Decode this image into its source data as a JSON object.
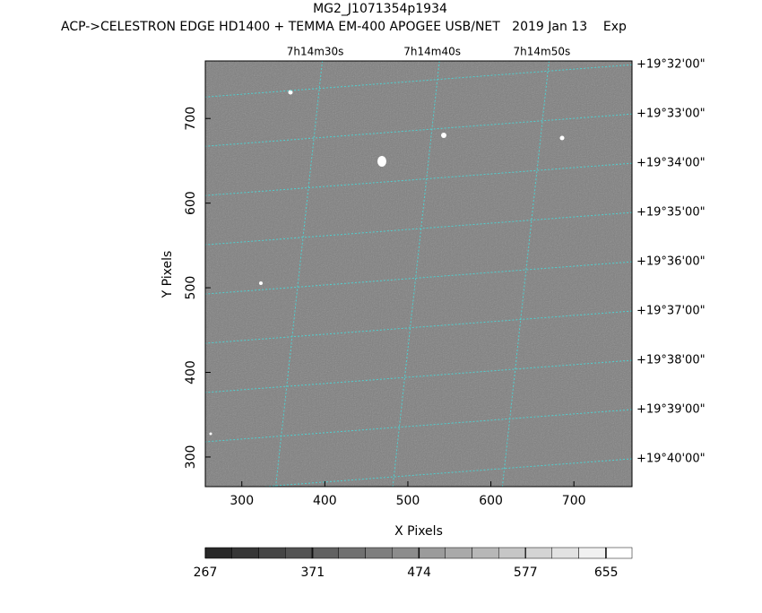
{
  "chart_data": {
    "type": "image",
    "title": "MG2_J1071354p1934",
    "subtitle": "ACP->CELESTRON EDGE HD1400 + TEMMA EM-400 APOGEE USB/NET   2019 Jan 13    Exp",
    "xlabel": "X Pixels",
    "ylabel": "Y Pixels",
    "xlim": [
      256,
      770
    ],
    "ylim": [
      265,
      768
    ],
    "xticks": [
      300,
      400,
      500,
      600,
      700
    ],
    "yticks": [
      300,
      400,
      500,
      600,
      700
    ],
    "top_ticks": [
      {
        "value": 397,
        "label": "7h14m30s"
      },
      {
        "value": 538,
        "label": "7h14m40s"
      },
      {
        "value": 670,
        "label": "7h14m50s"
      }
    ],
    "right_ticks": [
      {
        "value": 763.5,
        "label": "+19°32'00\""
      },
      {
        "value": 705.3,
        "label": "+19°33'00\""
      },
      {
        "value": 647.1,
        "label": "+19°34'00\""
      },
      {
        "value": 588.9,
        "label": "+19°35'00\""
      },
      {
        "value": 530.7,
        "label": "+19°36'00\""
      },
      {
        "value": 472.5,
        "label": "+19°37'00\""
      },
      {
        "value": 414.3,
        "label": "+19°38'00\""
      },
      {
        "value": 356.1,
        "label": "+19°39'00\""
      },
      {
        "value": 297.9,
        "label": "+19°40'00\""
      }
    ],
    "grid_color": "#4fd0d0",
    "clim": [
      267,
      680
    ],
    "colorbar_ticks": [
      267,
      371,
      474,
      577,
      655
    ]
  }
}
